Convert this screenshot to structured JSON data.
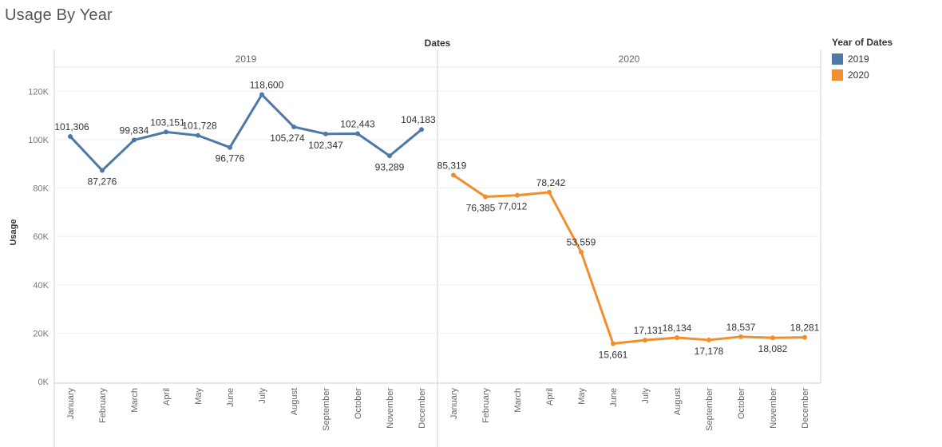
{
  "page": {
    "title": "Usage By Year"
  },
  "chart_data": {
    "type": "line",
    "title": "Usage By Year",
    "column_header": "Dates",
    "ylabel": "Usage",
    "ylim": [
      0,
      130000
    ],
    "yticks": [
      0,
      20000,
      40000,
      60000,
      80000,
      100000,
      120000
    ],
    "ytick_labels": [
      "0K",
      "20K",
      "40K",
      "60K",
      "80K",
      "100K",
      "120K"
    ],
    "categories": [
      "January",
      "February",
      "March",
      "April",
      "May",
      "June",
      "July",
      "August",
      "September",
      "October",
      "November",
      "December"
    ],
    "panels": [
      "2019",
      "2020"
    ],
    "grid": true,
    "legend": {
      "title": "Year of Dates",
      "position": "right"
    },
    "series": [
      {
        "name": "2019",
        "color": "#4e79a7",
        "values": [
          101306,
          87276,
          99834,
          103151,
          101728,
          96776,
          118600,
          105274,
          102347,
          102443,
          93289,
          104183
        ],
        "labels": [
          "101,306",
          "87,276",
          "99,834",
          "103,151",
          "101,728",
          "96,776",
          "118,600",
          "105,274",
          "102,347",
          "102,443",
          "93,289",
          "104,183"
        ]
      },
      {
        "name": "2020",
        "color": "#f28e2b",
        "values": [
          85319,
          76385,
          77012,
          78242,
          53559,
          15661,
          17131,
          18134,
          17178,
          18537,
          18082,
          18281
        ],
        "labels": [
          "85,319",
          "76,385",
          "77,012",
          "78,242",
          "53,559",
          "15,661",
          "17,131",
          "18,134",
          "17,178",
          "18,537",
          "18,082",
          "18,281"
        ]
      }
    ]
  }
}
